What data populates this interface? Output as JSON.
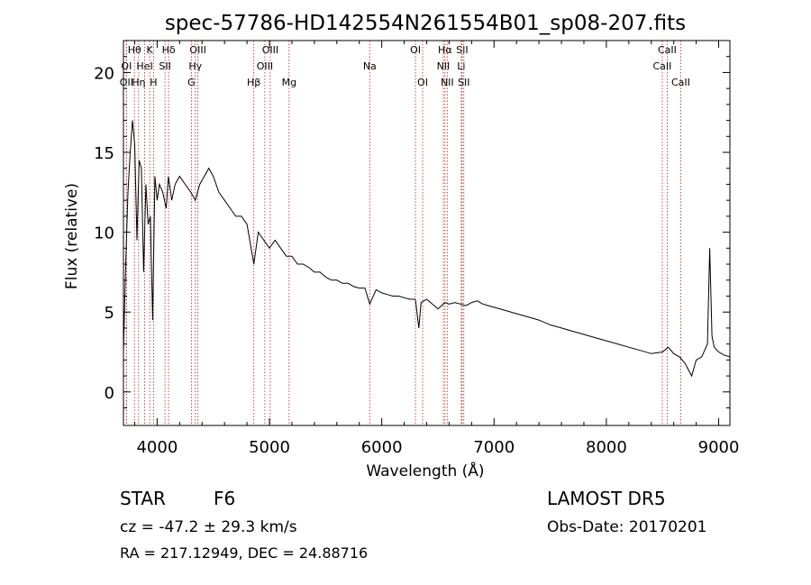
{
  "chart_data": {
    "type": "line",
    "title": "spec-57786-HD142554N261554B01_sp08-207.fits",
    "xlabel": "Wavelength (Å)",
    "ylabel": "Flux (relative)",
    "xlim": [
      3700,
      9100
    ],
    "ylim": [
      -2.1,
      22
    ],
    "x_ticks": [
      4000,
      5000,
      6000,
      7000,
      8000,
      9000
    ],
    "y_ticks": [
      0,
      5,
      10,
      15,
      20
    ],
    "grid": false,
    "line_color": "#000000",
    "marker_color": "#b22222",
    "series": [
      {
        "x": [
          3700,
          3720,
          3740,
          3760,
          3780,
          3800,
          3820,
          3840,
          3860,
          3880,
          3900,
          3920,
          3940,
          3960,
          3980,
          4000,
          4020,
          4050,
          4080,
          4100,
          4130,
          4160,
          4200,
          4250,
          4300,
          4340,
          4380,
          4420,
          4460,
          4500,
          4550,
          4600,
          4650,
          4700,
          4750,
          4800,
          4861,
          4900,
          4950,
          5000,
          5050,
          5100,
          5150,
          5200,
          5250,
          5300,
          5350,
          5400,
          5450,
          5500,
          5550,
          5600,
          5650,
          5700,
          5750,
          5800,
          5850,
          5893,
          5950,
          6000,
          6050,
          6100,
          6150,
          6200,
          6250,
          6300,
          6330,
          6350,
          6400,
          6450,
          6500,
          6563,
          6600,
          6650,
          6700,
          6750,
          6800,
          6850,
          6900,
          6950,
          7000,
          7100,
          7200,
          7300,
          7400,
          7500,
          7600,
          7700,
          7800,
          7900,
          8000,
          8100,
          8200,
          8300,
          8400,
          8500,
          8550,
          8600,
          8650,
          8700,
          8760,
          8800,
          8850,
          8900,
          8920,
          8940,
          8960,
          9000,
          9050,
          9100
        ],
        "y": [
          2.5,
          8.0,
          12.5,
          15.0,
          17.0,
          15.5,
          9.5,
          14.5,
          14.0,
          7.5,
          13.0,
          10.5,
          11.0,
          4.5,
          13.5,
          12.0,
          13.0,
          12.5,
          11.5,
          13.5,
          12.0,
          13.0,
          13.5,
          13.0,
          12.5,
          12.0,
          13.0,
          13.5,
          14.0,
          13.5,
          12.5,
          12.0,
          11.5,
          11.0,
          11.0,
          10.5,
          8.0,
          10.0,
          9.5,
          9.0,
          9.5,
          9.0,
          8.5,
          8.5,
          8.0,
          8.0,
          7.8,
          7.5,
          7.5,
          7.2,
          7.0,
          7.0,
          6.8,
          6.8,
          6.6,
          6.5,
          6.5,
          5.5,
          6.4,
          6.2,
          6.1,
          6.0,
          6.0,
          5.9,
          5.8,
          5.8,
          4.0,
          5.6,
          5.8,
          5.5,
          5.2,
          5.6,
          5.5,
          5.6,
          5.5,
          5.4,
          5.6,
          5.7,
          5.5,
          5.4,
          5.3,
          5.1,
          4.9,
          4.7,
          4.5,
          4.2,
          4.0,
          3.8,
          3.6,
          3.4,
          3.2,
          3.0,
          2.8,
          2.6,
          2.4,
          2.5,
          2.8,
          2.4,
          2.2,
          1.8,
          1.0,
          2.0,
          2.2,
          3.0,
          9.0,
          3.5,
          2.8,
          2.5,
          2.3,
          2.2
        ]
      }
    ],
    "markers": [
      {
        "label": "Hθ",
        "wavelength": 3798,
        "row": 0
      },
      {
        "label": "K",
        "wavelength": 3934,
        "row": 0
      },
      {
        "label": "Hδ",
        "wavelength": 4102,
        "row": 0
      },
      {
        "label": "OIII",
        "wavelength": 4363,
        "row": 0
      },
      {
        "label": "OIII",
        "wavelength": 5007,
        "row": 0
      },
      {
        "label": "OI",
        "wavelength": 6300,
        "row": 0
      },
      {
        "label": "Hα",
        "wavelength": 6563,
        "row": 0
      },
      {
        "label": "SII",
        "wavelength": 6716,
        "row": 0
      },
      {
        "label": "CaII",
        "wavelength": 8542,
        "row": 0
      },
      {
        "label": "OI",
        "wavelength": 3727,
        "row": 1
      },
      {
        "label": "HeI",
        "wavelength": 3889,
        "row": 1
      },
      {
        "label": "SII",
        "wavelength": 4070,
        "row": 1
      },
      {
        "label": "Hγ",
        "wavelength": 4340,
        "row": 1
      },
      {
        "label": "OIII",
        "wavelength": 4959,
        "row": 1
      },
      {
        "label": "Na",
        "wavelength": 5893,
        "row": 1
      },
      {
        "label": "NII",
        "wavelength": 6548,
        "row": 1
      },
      {
        "label": "Li",
        "wavelength": 6708,
        "row": 1
      },
      {
        "label": "CaII",
        "wavelength": 8498,
        "row": 1
      },
      {
        "label": "OII",
        "wavelength": 3727,
        "row": 2
      },
      {
        "label": "Hη",
        "wavelength": 3835,
        "row": 2
      },
      {
        "label": "H",
        "wavelength": 3968,
        "row": 2
      },
      {
        "label": "G",
        "wavelength": 4305,
        "row": 2
      },
      {
        "label": "Hβ",
        "wavelength": 4861,
        "row": 2
      },
      {
        "label": "Mg",
        "wavelength": 5175,
        "row": 2
      },
      {
        "label": "OI",
        "wavelength": 6364,
        "row": 2
      },
      {
        "label": "NII",
        "wavelength": 6583,
        "row": 2
      },
      {
        "label": "SII",
        "wavelength": 6731,
        "row": 2
      },
      {
        "label": "CaII",
        "wavelength": 8662,
        "row": 2
      }
    ]
  },
  "info": {
    "object_class": "STAR",
    "subclass": "F6",
    "survey": "LAMOST DR5",
    "redshift": "cz = -47.2 ± 29.3 km/s",
    "obs_date": "Obs-Date: 20170201",
    "coords": "RA = 217.12949, DEC =  24.88716"
  }
}
